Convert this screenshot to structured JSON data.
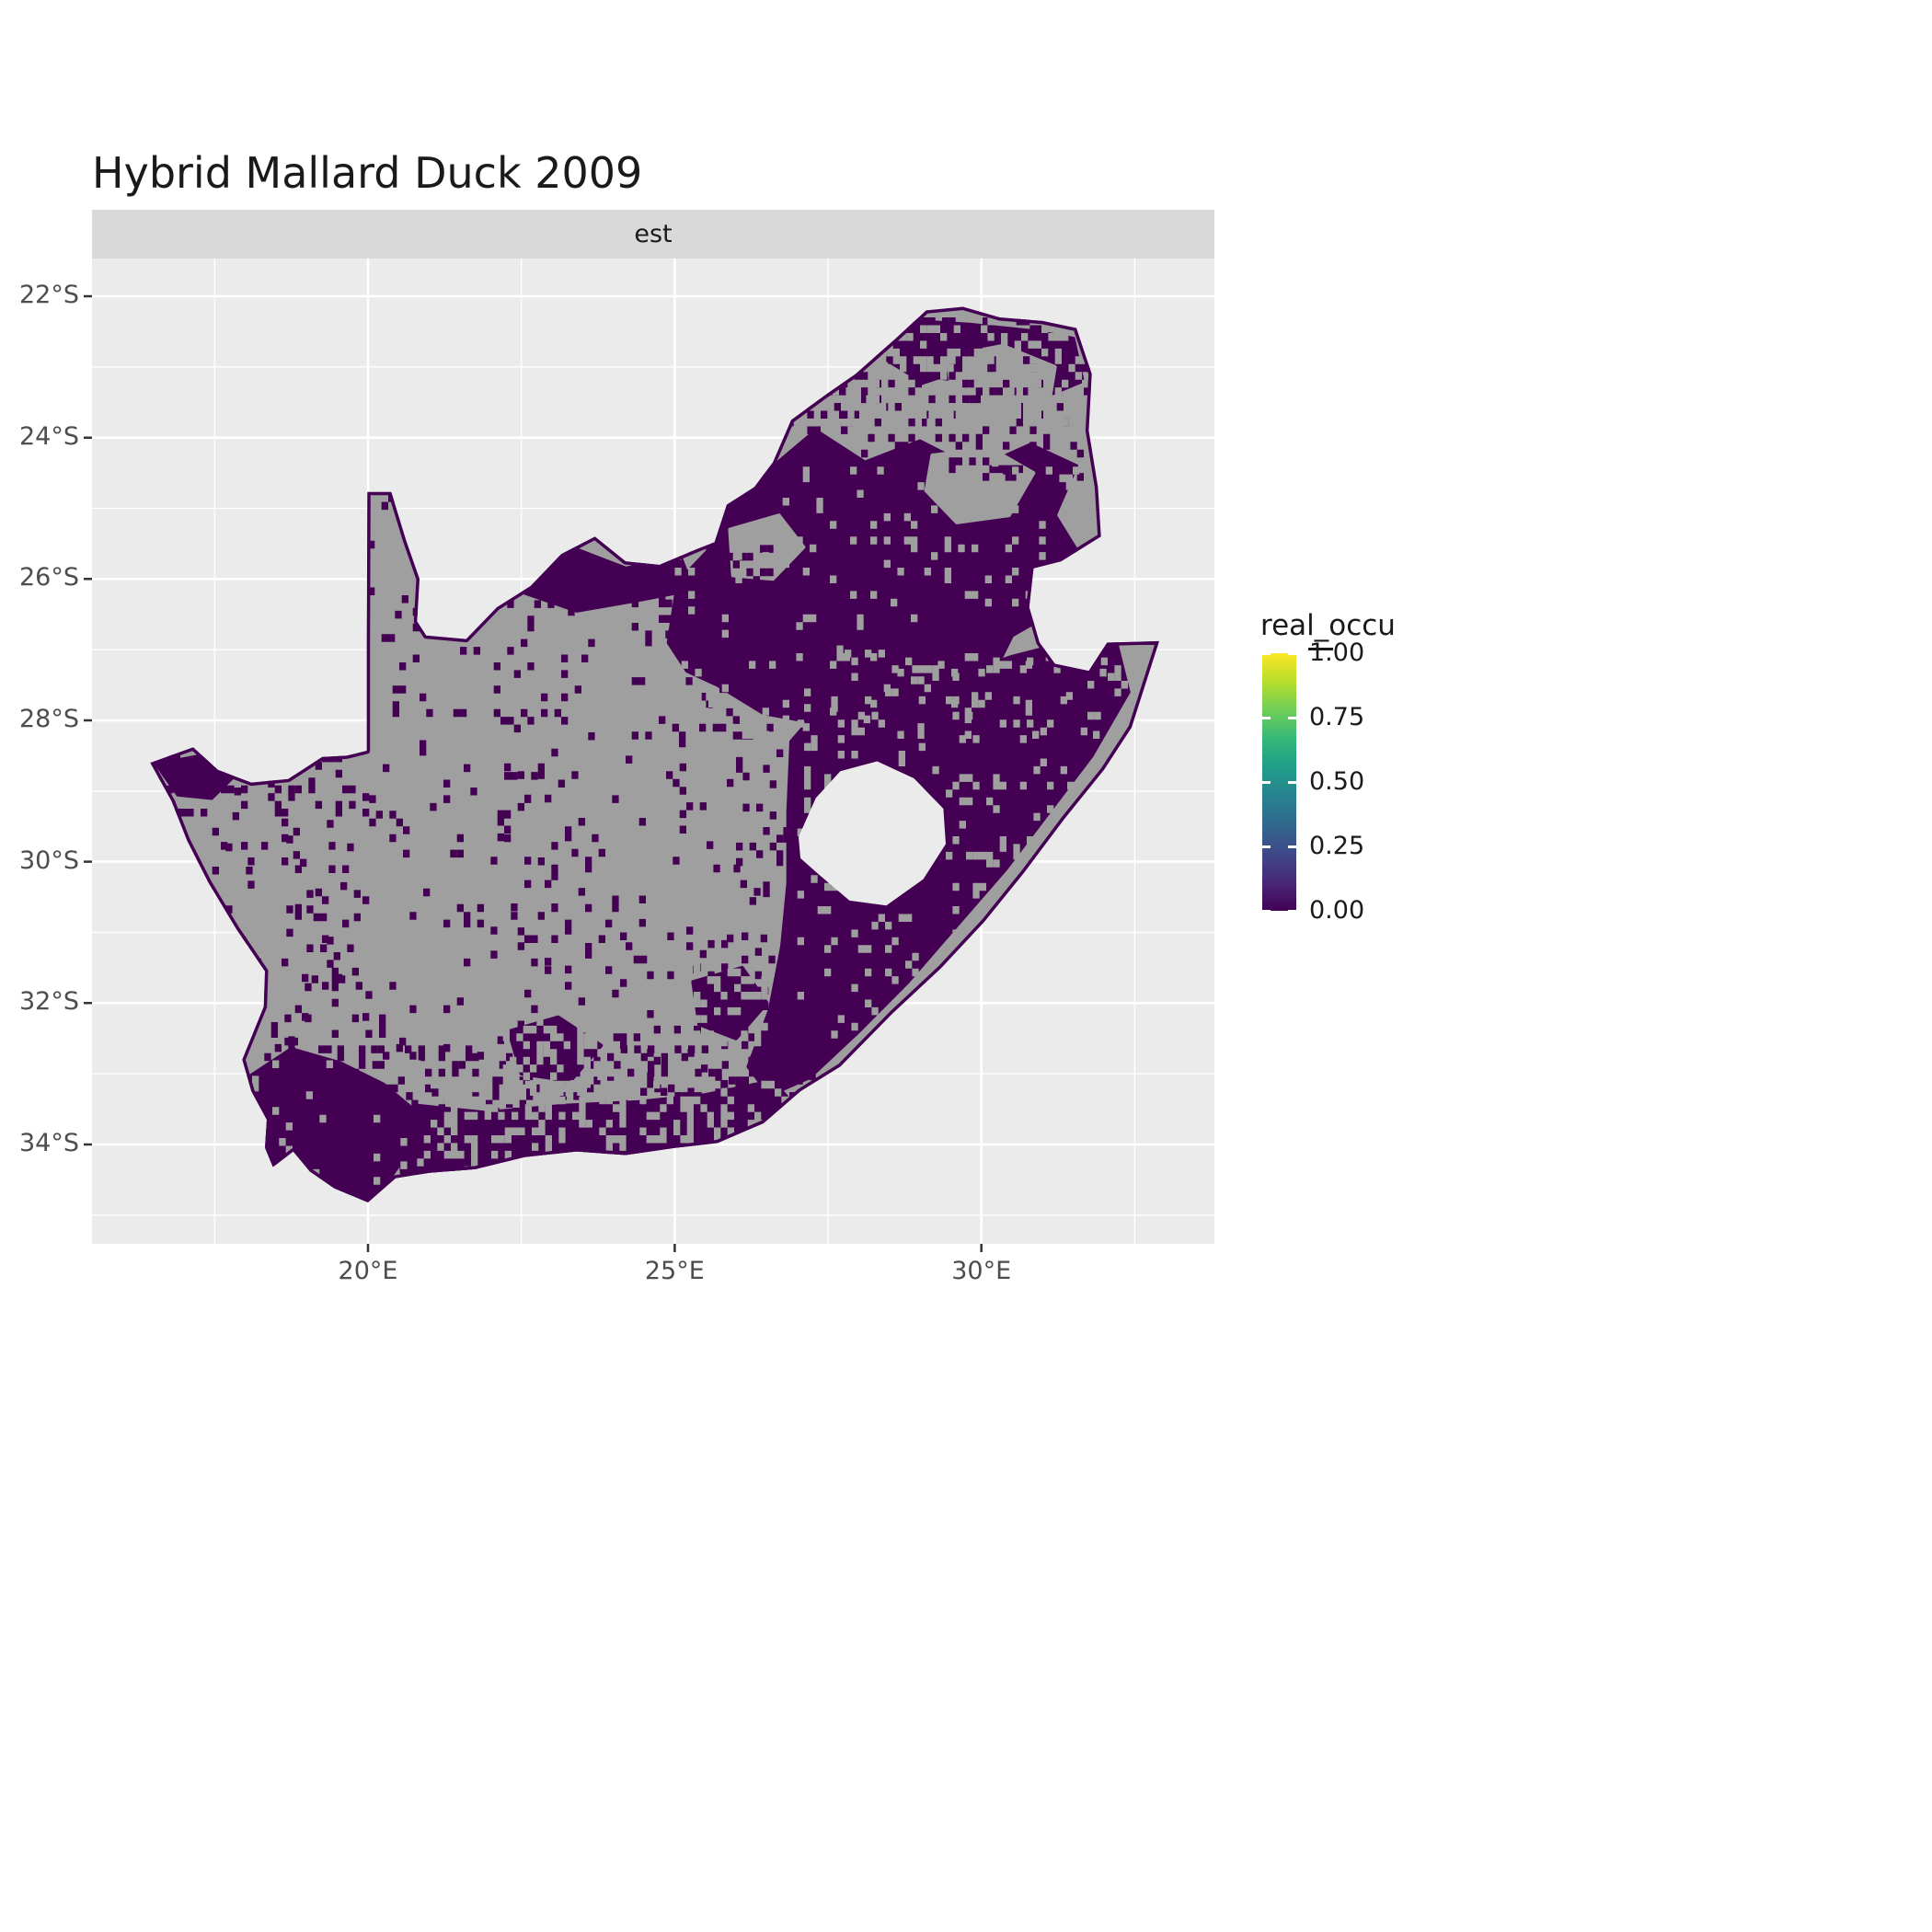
{
  "title": "Hybrid Mallard Duck 2009",
  "facet": {
    "label": "est"
  },
  "axes": {
    "x": {
      "ticks": [
        {
          "value": 20,
          "label": "20°E"
        },
        {
          "value": 25,
          "label": "25°E"
        },
        {
          "value": 30,
          "label": "30°E"
        }
      ],
      "minor": [
        17.5,
        22.5,
        27.5,
        32.5
      ]
    },
    "y": {
      "ticks": [
        {
          "value": 22,
          "label": "22°S"
        },
        {
          "value": 24,
          "label": "24°S"
        },
        {
          "value": 26,
          "label": "26°S"
        },
        {
          "value": 28,
          "label": "28°S"
        },
        {
          "value": 30,
          "label": "30°S"
        },
        {
          "value": 32,
          "label": "32°S"
        },
        {
          "value": 34,
          "label": "34°S"
        }
      ],
      "minor": [
        23,
        25,
        27,
        29,
        31,
        33,
        35
      ]
    }
  },
  "legend": {
    "title": "real_occu",
    "ticks": [
      {
        "value": 1.0,
        "label": "1.00"
      },
      {
        "value": 0.75,
        "label": "0.75"
      },
      {
        "value": 0.5,
        "label": "0.50"
      },
      {
        "value": 0.25,
        "label": "0.25"
      },
      {
        "value": 0.0,
        "label": "0.00"
      }
    ],
    "colormap": "viridis",
    "stops": [
      "#440154",
      "#482878",
      "#3E4989",
      "#31688E",
      "#26828E",
      "#1F9E89",
      "#35B779",
      "#6ECE58",
      "#B5DE2B",
      "#FDE725"
    ]
  },
  "colors": {
    "background": "#FFFFFF",
    "panel": "#EBEBEB",
    "strip": "#D9D9D9",
    "grid": "#FFFFFF",
    "axis_text": "#4D4D4D",
    "tick_mark": "#333333",
    "title_text": "#1A1A1A",
    "na_cell": "#9F9F9F",
    "zero_cell": "#440154",
    "hole": "#EBEBEB"
  },
  "chart_data": {
    "type": "heatmap",
    "title": "Hybrid Mallard Duck 2009",
    "facet": "est",
    "region": "South Africa (gridded raster map, Lesotho shown as hole, eSwatini as notch)",
    "variable": "real_occu",
    "value_range": [
      0,
      1
    ],
    "legend_ticks": [
      1.0,
      0.75,
      0.5,
      0.25,
      0.0
    ],
    "x_ticks_deg_east": [
      20,
      25,
      30
    ],
    "y_ticks_deg_south": [
      22,
      24,
      26,
      28,
      30,
      32,
      34
    ],
    "x_range_deg_east": [
      15.5,
      33.8
    ],
    "y_range_deg_south": [
      21.5,
      35.4
    ],
    "grid": true,
    "legend_position": "right",
    "values_depicted": "All rendered raster cells show real_occu = 0.00 (dark viridis purple #440154); remaining land cells are NA (grey #9F9F9F). No cells above 0 are visible.",
    "pattern_summary": "Solid 0.00 (purple) coverage over the north-east interior (Highveld/Limpopo/Mpumalanga), around Lesotho and along the east (KwaZulu-Natal) coast, and over the south-west Cape and south coast; central/western interior (Karoo, Northern Cape) mostly NA grey with sparse purple speckle; purple fringe along national borders.",
    "map": {
      "cell_deg": 0.11,
      "outline": [
        [
          16.45,
          28.6
        ],
        [
          17.15,
          28.38
        ],
        [
          17.55,
          28.7
        ],
        [
          18.1,
          28.88
        ],
        [
          18.7,
          28.83
        ],
        [
          19.25,
          28.52
        ],
        [
          19.65,
          28.5
        ],
        [
          19.98,
          28.43
        ],
        [
          19.98,
          26.9
        ],
        [
          19.99,
          24.77
        ],
        [
          20.38,
          24.77
        ],
        [
          20.62,
          25.45
        ],
        [
          20.84,
          26.0
        ],
        [
          20.8,
          26.6
        ],
        [
          20.95,
          26.8
        ],
        [
          21.6,
          26.85
        ],
        [
          22.1,
          26.4
        ],
        [
          22.65,
          26.1
        ],
        [
          23.15,
          25.65
        ],
        [
          23.7,
          25.4
        ],
        [
          24.2,
          25.75
        ],
        [
          24.75,
          25.8
        ],
        [
          25.35,
          25.58
        ],
        [
          25.65,
          25.48
        ],
        [
          25.85,
          24.95
        ],
        [
          26.3,
          24.7
        ],
        [
          26.6,
          24.35
        ],
        [
          26.9,
          23.75
        ],
        [
          27.45,
          23.4
        ],
        [
          27.95,
          23.1
        ],
        [
          28.6,
          22.6
        ],
        [
          29.1,
          22.2
        ],
        [
          29.7,
          22.15
        ],
        [
          30.3,
          22.3
        ],
        [
          31.0,
          22.35
        ],
        [
          31.55,
          22.45
        ],
        [
          31.8,
          23.1
        ],
        [
          31.75,
          23.9
        ],
        [
          31.9,
          24.7
        ],
        [
          31.95,
          25.4
        ],
        [
          31.3,
          25.75
        ],
        [
          30.85,
          25.85
        ],
        [
          30.78,
          26.4
        ],
        [
          30.95,
          26.9
        ],
        [
          31.2,
          27.2
        ],
        [
          31.75,
          27.3
        ],
        [
          32.05,
          26.9
        ],
        [
          32.9,
          26.88
        ],
        [
          32.45,
          28.1
        ],
        [
          32.0,
          28.7
        ],
        [
          31.35,
          29.4
        ],
        [
          30.7,
          30.15
        ],
        [
          30.05,
          30.85
        ],
        [
          29.35,
          31.5
        ],
        [
          28.55,
          32.15
        ],
        [
          27.7,
          32.9
        ],
        [
          27.05,
          33.25
        ],
        [
          26.45,
          33.7
        ],
        [
          25.7,
          33.98
        ],
        [
          25.0,
          34.05
        ],
        [
          24.2,
          34.15
        ],
        [
          23.4,
          34.1
        ],
        [
          22.55,
          34.18
        ],
        [
          21.75,
          34.35
        ],
        [
          21.0,
          34.4
        ],
        [
          20.45,
          34.48
        ],
        [
          20.0,
          34.82
        ],
        [
          19.45,
          34.62
        ],
        [
          19.05,
          34.38
        ],
        [
          18.78,
          34.1
        ],
        [
          18.45,
          34.32
        ],
        [
          18.32,
          34.05
        ],
        [
          18.35,
          33.65
        ],
        [
          18.1,
          33.25
        ],
        [
          17.95,
          32.8
        ],
        [
          18.3,
          32.05
        ],
        [
          18.32,
          31.55
        ],
        [
          17.85,
          30.95
        ],
        [
          17.4,
          30.3
        ],
        [
          17.05,
          29.7
        ],
        [
          16.8,
          29.15
        ]
      ],
      "lesotho_hole": [
        [
          27.02,
          29.65
        ],
        [
          27.3,
          29.1
        ],
        [
          27.7,
          28.72
        ],
        [
          28.3,
          28.58
        ],
        [
          28.9,
          28.82
        ],
        [
          29.38,
          29.25
        ],
        [
          29.42,
          29.75
        ],
        [
          29.05,
          30.25
        ],
        [
          28.45,
          30.62
        ],
        [
          27.85,
          30.55
        ],
        [
          27.35,
          30.18
        ],
        [
          27.05,
          29.95
        ]
      ],
      "purple_blobs": [
        [
          [
            24.9,
            26.9
          ],
          [
            25.05,
            26.05
          ],
          [
            25.6,
            25.55
          ],
          [
            25.9,
            24.9
          ],
          [
            26.55,
            24.45
          ],
          [
            27.3,
            23.9
          ],
          [
            28.1,
            24.35
          ],
          [
            29.0,
            24.05
          ],
          [
            29.9,
            24.45
          ],
          [
            30.8,
            24.1
          ],
          [
            31.55,
            24.4
          ],
          [
            31.2,
            25.1
          ],
          [
            31.7,
            25.8
          ],
          [
            31.1,
            26.5
          ],
          [
            30.5,
            26.8
          ],
          [
            30.1,
            27.5
          ],
          [
            29.2,
            27.85
          ],
          [
            28.3,
            27.65
          ],
          [
            27.4,
            28.05
          ],
          [
            26.45,
            27.9
          ],
          [
            25.7,
            27.5
          ],
          [
            25.2,
            27.3
          ]
        ],
        [
          [
            26.9,
            28.3
          ],
          [
            27.6,
            27.6
          ],
          [
            28.5,
            27.3
          ],
          [
            29.5,
            27.4
          ],
          [
            30.5,
            27.1
          ],
          [
            31.4,
            26.9
          ],
          [
            32.2,
            26.9
          ],
          [
            32.4,
            27.6
          ],
          [
            31.8,
            28.5
          ],
          [
            31.1,
            29.3
          ],
          [
            30.4,
            30.1
          ],
          [
            29.6,
            30.9
          ],
          [
            28.8,
            31.7
          ],
          [
            28.0,
            32.4
          ],
          [
            27.2,
            33.05
          ],
          [
            26.55,
            33.3
          ],
          [
            26.2,
            32.9
          ],
          [
            26.55,
            32.1
          ],
          [
            26.75,
            31.2
          ],
          [
            26.85,
            30.3
          ],
          [
            26.85,
            29.3
          ]
        ],
        [
          [
            18.05,
            33.05
          ],
          [
            18.75,
            32.65
          ],
          [
            19.55,
            32.85
          ],
          [
            20.25,
            33.15
          ],
          [
            20.8,
            33.55
          ],
          [
            20.65,
            34.1
          ],
          [
            20.3,
            34.55
          ],
          [
            19.95,
            34.8
          ],
          [
            19.35,
            34.58
          ],
          [
            18.82,
            34.25
          ],
          [
            18.45,
            34.28
          ],
          [
            18.33,
            33.95
          ],
          [
            18.08,
            33.45
          ]
        ],
        [
          [
            20.8,
            33.45
          ],
          [
            21.9,
            33.55
          ],
          [
            23.2,
            33.45
          ],
          [
            24.4,
            33.4
          ],
          [
            25.5,
            33.3
          ],
          [
            26.6,
            33.1
          ],
          [
            26.95,
            33.45
          ],
          [
            25.85,
            34.02
          ],
          [
            24.75,
            34.2
          ],
          [
            23.55,
            34.15
          ],
          [
            22.4,
            34.22
          ],
          [
            21.35,
            34.42
          ],
          [
            20.55,
            34.4
          ],
          [
            20.5,
            33.9
          ]
        ],
        [
          [
            26.95,
            23.3
          ],
          [
            27.8,
            22.85
          ],
          [
            28.9,
            22.35
          ],
          [
            29.8,
            22.4
          ],
          [
            30.9,
            22.5
          ],
          [
            31.5,
            22.6
          ],
          [
            31.65,
            23.2
          ],
          [
            30.95,
            23.45
          ],
          [
            30.15,
            23.25
          ],
          [
            29.3,
            23.15
          ],
          [
            28.45,
            23.4
          ],
          [
            27.6,
            23.7
          ]
        ],
        [
          [
            22.4,
            26.15
          ],
          [
            23.3,
            25.55
          ],
          [
            24.2,
            25.85
          ],
          [
            25.1,
            25.7
          ],
          [
            25.3,
            26.15
          ],
          [
            24.4,
            26.3
          ],
          [
            23.4,
            26.45
          ]
        ],
        [
          [
            16.55,
            28.62
          ],
          [
            17.3,
            28.5
          ],
          [
            17.8,
            28.8
          ],
          [
            17.45,
            29.1
          ],
          [
            16.9,
            29.05
          ]
        ],
        [
          [
            22.3,
            32.4
          ],
          [
            23.1,
            32.2
          ],
          [
            23.8,
            32.6
          ],
          [
            23.3,
            33.1
          ],
          [
            22.5,
            33.0
          ]
        ],
        [
          [
            25.3,
            31.7
          ],
          [
            26.1,
            31.5
          ],
          [
            26.5,
            32.0
          ],
          [
            26.0,
            32.5
          ],
          [
            25.4,
            32.3
          ]
        ]
      ],
      "gray_patches": [
        [
          [
            27.25,
            23.0
          ],
          [
            28.25,
            22.85
          ],
          [
            29.0,
            23.25
          ],
          [
            28.7,
            23.9
          ],
          [
            27.9,
            24.1
          ],
          [
            27.2,
            23.7
          ]
        ],
        [
          [
            29.45,
            22.85
          ],
          [
            30.35,
            22.7
          ],
          [
            31.2,
            23.0
          ],
          [
            31.05,
            23.8
          ],
          [
            30.2,
            24.05
          ],
          [
            29.55,
            23.65
          ]
        ],
        [
          [
            29.2,
            24.25
          ],
          [
            30.15,
            24.15
          ],
          [
            30.85,
            24.5
          ],
          [
            30.45,
            25.1
          ],
          [
            29.6,
            25.2
          ],
          [
            29.1,
            24.75
          ]
        ],
        [
          [
            25.9,
            25.3
          ],
          [
            26.7,
            25.1
          ],
          [
            27.1,
            25.55
          ],
          [
            26.6,
            26.0
          ],
          [
            25.95,
            25.95
          ]
        ]
      ],
      "purple_speckle_regions": [
        [
          16.5,
          20.0,
          28.15,
          29.3,
          0.14
        ],
        [
          16.8,
          20.0,
          29.3,
          31.5,
          0.05
        ],
        [
          17.6,
          24.0,
          28.4,
          32.8,
          0.045
        ],
        [
          20.4,
          23.6,
          26.3,
          28.4,
          0.09
        ],
        [
          22.0,
          26.5,
          28.5,
          31.5,
          0.06
        ],
        [
          24.0,
          27.5,
          31.0,
          33.2,
          0.12
        ],
        [
          19.5,
          27.0,
          32.6,
          34.4,
          0.22
        ],
        [
          26.5,
          31.8,
          22.3,
          24.5,
          0.2
        ],
        [
          24.3,
          26.5,
          25.3,
          28.3,
          0.15
        ],
        [
          26.0,
          28.0,
          28.3,
          30.6,
          0.15
        ],
        [
          20.0,
          21.0,
          24.8,
          26.9,
          0.1
        ],
        [
          18.2,
          20.8,
          31.5,
          33.3,
          0.1
        ]
      ],
      "gray_speckle_regions": [
        [
          25.0,
          32.0,
          24.3,
          28.2,
          0.07
        ],
        [
          20.8,
          27.0,
          33.1,
          34.4,
          0.33
        ],
        [
          27.0,
          32.3,
          27.0,
          32.5,
          0.1
        ],
        [
          18.0,
          20.8,
          32.7,
          34.8,
          0.07
        ],
        [
          26.8,
          31.7,
          22.3,
          23.8,
          0.28
        ],
        [
          22.2,
          23.9,
          32.1,
          33.2,
          0.3
        ],
        [
          25.2,
          26.6,
          31.4,
          32.6,
          0.3
        ]
      ]
    }
  }
}
